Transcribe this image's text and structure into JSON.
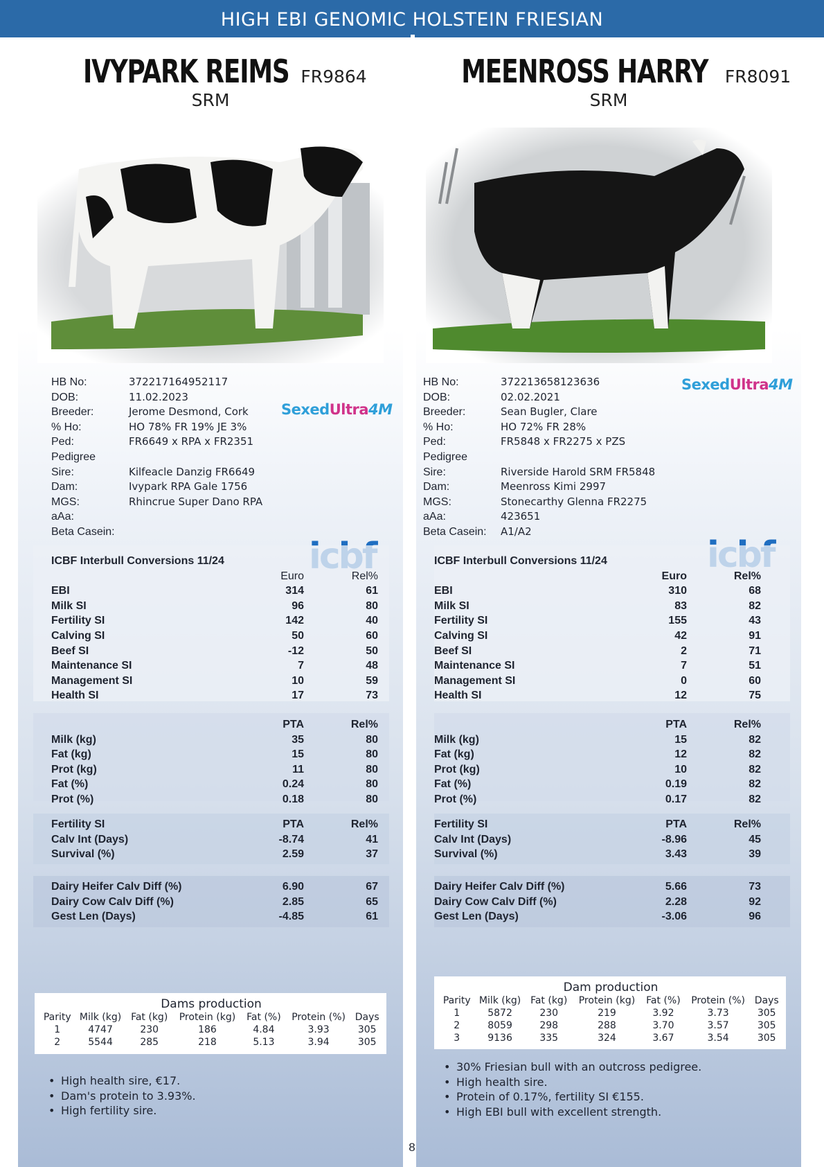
{
  "banner": "HIGH EBI GENOMIC HOLSTEIN FRIESIAN",
  "page_number": "8",
  "bulls": [
    {
      "name": "IVYPARK REIMS",
      "code": "FR9864",
      "type": "SRM",
      "info": [
        {
          "k": "HB No:",
          "v": "372217164952117"
        },
        {
          "k": "DOB:",
          "v": "11.02.2023"
        },
        {
          "k": "Breeder:",
          "v": "Jerome Desmond, Cork"
        },
        {
          "k": "% Ho:",
          "v": "HO 78% FR 19% JE 3%"
        },
        {
          "k": "Ped:",
          "v": "FR6649 x RPA x FR2351"
        },
        {
          "k": "Pedigree",
          "v": ""
        },
        {
          "k": "Sire:",
          "v": "Kilfeacle Danzig FR6649"
        },
        {
          "k": "Dam:",
          "v": "Ivypark RPA Gale 1756"
        },
        {
          "k": "MGS:",
          "v": "Rhincrue Super Dano RPA"
        },
        {
          "k": "aAa:",
          "v": ""
        },
        {
          "k": "Beta Casein:",
          "v": ""
        }
      ],
      "sexed": {
        "a": "Sexed",
        "b": "Ultra",
        "c": "4M"
      },
      "icbf_logo": "icbf",
      "conv_title": "ICBF Interbull Conversions 11/24",
      "conv_head": {
        "a": "Euro",
        "b": "Rel%"
      },
      "conv": [
        {
          "l": "EBI",
          "a": "314",
          "b": "61"
        },
        {
          "l": "Milk SI",
          "a": "96",
          "b": "80"
        },
        {
          "l": "Fertility SI",
          "a": "142",
          "b": "40"
        },
        {
          "l": "Calving SI",
          "a": "50",
          "b": "60"
        },
        {
          "l": "Beef SI",
          "a": "-12",
          "b": "50"
        },
        {
          "l": "Maintenance SI",
          "a": "7",
          "b": "48"
        },
        {
          "l": "Management SI",
          "a": "10",
          "b": "59"
        },
        {
          "l": "Health SI",
          "a": "17",
          "b": "73"
        }
      ],
      "prod_head": {
        "a": "PTA",
        "b": "Rel%"
      },
      "prod": [
        {
          "l": "Milk (kg)",
          "a": "35",
          "b": "80"
        },
        {
          "l": "Fat (kg)",
          "a": "15",
          "b": "80"
        },
        {
          "l": "Prot (kg)",
          "a": "11",
          "b": "80"
        },
        {
          "l": "Fat (%)",
          "a": "0.24",
          "b": "80"
        },
        {
          "l": "Prot (%)",
          "a": "0.18",
          "b": "80"
        }
      ],
      "fert_head": {
        "l": "Fertility SI",
        "a": "PTA",
        "b": "Rel%"
      },
      "fert": [
        {
          "l": "Calv Int (Days)",
          "a": "-8.74",
          "b": "41"
        },
        {
          "l": "Survival (%)",
          "a": "2.59",
          "b": "37"
        }
      ],
      "calv": [
        {
          "l": "Dairy Heifer Calv Diff (%)",
          "a": "6.90",
          "b": "67"
        },
        {
          "l": "Dairy Cow Calv Diff (%)",
          "a": "2.85",
          "b": "65"
        },
        {
          "l": "Gest Len (Days)",
          "a": "-4.85",
          "b": "61"
        }
      ],
      "dams_title": "Dams production",
      "dams_head": [
        "Parity",
        "Milk (kg)",
        "Fat (kg)",
        "Protein (kg)",
        "Fat (%)",
        "Protein (%)",
        "Days"
      ],
      "dams_rows": [
        [
          "1",
          "4747",
          "230",
          "186",
          "4.84",
          "3.93",
          "305"
        ],
        [
          "2",
          "5544",
          "285",
          "218",
          "5.13",
          "3.94",
          "305"
        ]
      ],
      "bullets": [
        "High health sire, €17.",
        "Dam's protein to 3.93%.",
        "High fertility sire."
      ]
    },
    {
      "name": "MEENROSS HARRY",
      "code": "FR8091",
      "type": "SRM",
      "info": [
        {
          "k": "HB No:",
          "v": "372213658123636"
        },
        {
          "k": "DOB:",
          "v": "02.02.2021"
        },
        {
          "k": "Breeder:",
          "v": "Sean Bugler, Clare"
        },
        {
          "k": "% Ho:",
          "v": "HO 72% FR 28%"
        },
        {
          "k": "Ped:",
          "v": "FR5848 x FR2275 x PZS"
        },
        {
          "k": "Pedigree",
          "v": ""
        },
        {
          "k": "Sire:",
          "v": "Riverside Harold SRM FR5848"
        },
        {
          "k": "Dam:",
          "v": "Meenross Kimi 2997"
        },
        {
          "k": "MGS:",
          "v": "Stonecarthy Glenna FR2275"
        },
        {
          "k": "aAa:",
          "v": "423651"
        },
        {
          "k": "Beta Casein:",
          "v": "A1/A2"
        }
      ],
      "sexed": {
        "a": "Sexed",
        "b": "Ultra",
        "c": "4M"
      },
      "icbf_logo": "icbf",
      "conv_title": "ICBF Interbull Conversions 11/24",
      "conv_head": {
        "a": "Euro",
        "b": "Rel%"
      },
      "conv": [
        {
          "l": "EBI",
          "a": "310",
          "b": "68"
        },
        {
          "l": "Milk SI",
          "a": "83",
          "b": "82"
        },
        {
          "l": "Fertility SI",
          "a": "155",
          "b": "43"
        },
        {
          "l": "Calving SI",
          "a": "42",
          "b": "91"
        },
        {
          "l": "Beef SI",
          "a": "2",
          "b": "71"
        },
        {
          "l": "Maintenance SI",
          "a": "7",
          "b": "51"
        },
        {
          "l": "Management SI",
          "a": "0",
          "b": "60"
        },
        {
          "l": "Health SI",
          "a": "12",
          "b": "75"
        }
      ],
      "prod_head": {
        "a": "PTA",
        "b": "Rel%"
      },
      "prod": [
        {
          "l": "Milk (kg)",
          "a": "15",
          "b": "82"
        },
        {
          "l": "Fat (kg)",
          "a": "12",
          "b": "82"
        },
        {
          "l": "Prot (kg)",
          "a": "10",
          "b": "82"
        },
        {
          "l": "Fat (%)",
          "a": "0.19",
          "b": "82"
        },
        {
          "l": "Prot (%)",
          "a": "0.17",
          "b": "82"
        }
      ],
      "fert_head": {
        "l": "Fertility SI",
        "a": "PTA",
        "b": "Rel%"
      },
      "fert": [
        {
          "l": "Calv Int (Days)",
          "a": "-8.96",
          "b": "45"
        },
        {
          "l": "Survival (%)",
          "a": "3.43",
          "b": "39"
        }
      ],
      "calv": [
        {
          "l": "Dairy Heifer Calv Diff (%)",
          "a": "5.66",
          "b": "73"
        },
        {
          "l": "Dairy Cow Calv Diff (%)",
          "a": "2.28",
          "b": "92"
        },
        {
          "l": "Gest Len (Days)",
          "a": "-3.06",
          "b": "96"
        }
      ],
      "dams_title": "Dam production",
      "dams_head": [
        "Parity",
        "Milk (kg)",
        "Fat (kg)",
        "Protein (kg)",
        "Fat (%)",
        "Protein (%)",
        "Days"
      ],
      "dams_rows": [
        [
          "1",
          "5872",
          "230",
          "219",
          "3.92",
          "3.73",
          "305"
        ],
        [
          "2",
          "8059",
          "298",
          "288",
          "3.70",
          "3.57",
          "305"
        ],
        [
          "3",
          "9136",
          "335",
          "324",
          "3.67",
          "3.54",
          "305"
        ]
      ],
      "bullets": [
        "30% Friesian bull with an outcross pedigree.",
        "High health sire.",
        "Protein of 0.17%, fertility SI €155.",
        "High EBI bull with excellent strength."
      ]
    }
  ]
}
